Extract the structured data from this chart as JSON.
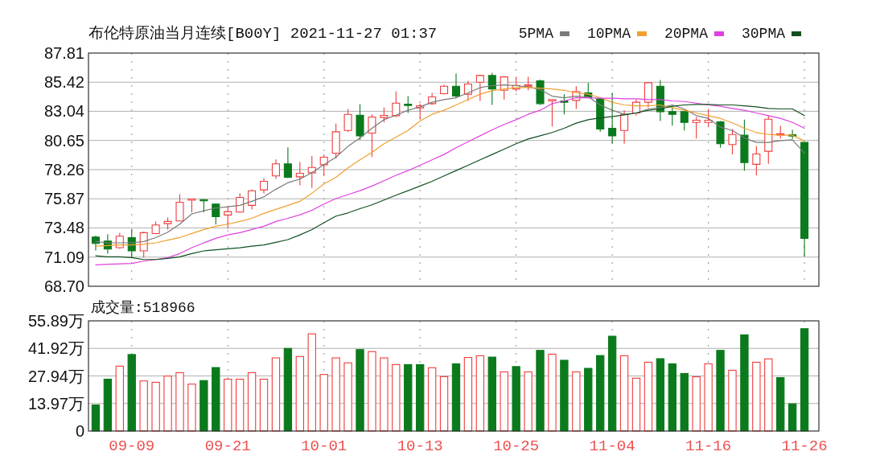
{
  "chart_data": [
    {
      "type": "candlestick",
      "title": "布伦特原油当月连续[B00Y] 2021-11-27 01:37",
      "categories": [
        null,
        null,
        null,
        null,
        null,
        null,
        null,
        null,
        null,
        null,
        null,
        null,
        null,
        null,
        null,
        null,
        null,
        null,
        null,
        null,
        null,
        null,
        null,
        null,
        null,
        null,
        null,
        null,
        null,
        null,
        null,
        null,
        null,
        null,
        null,
        null,
        null,
        null,
        null,
        null,
        null,
        null,
        null,
        null,
        null,
        null,
        null,
        null,
        null,
        null,
        null,
        null,
        null,
        null,
        null,
        null,
        null,
        null,
        null,
        null
      ],
      "ohlc": [
        [
          72.74,
          72.85,
          71.64,
          72.21
        ],
        [
          72.41,
          72.96,
          71.37,
          71.75
        ],
        [
          71.86,
          73.09,
          71.77,
          72.8
        ],
        [
          72.69,
          73.39,
          71.05,
          71.6
        ],
        [
          71.6,
          73.18,
          71.05,
          73.09
        ],
        [
          73.02,
          74.01,
          72.96,
          73.72
        ],
        [
          73.83,
          74.34,
          73.35,
          74.01
        ],
        [
          74.05,
          76.25,
          74.01,
          75.59
        ],
        [
          75.78,
          75.85,
          74.75,
          75.82
        ],
        [
          75.78,
          75.8,
          74.77,
          75.72
        ],
        [
          75.44,
          75.48,
          73.75,
          74.4
        ],
        [
          74.54,
          75.22,
          73.42,
          74.82
        ],
        [
          74.78,
          76.31,
          74.71,
          75.98
        ],
        [
          75.33,
          76.64,
          75.0,
          76.53
        ],
        [
          76.6,
          77.56,
          76.31,
          77.3
        ],
        [
          77.74,
          79.1,
          77.52,
          78.73
        ],
        [
          78.73,
          80.09,
          77.56,
          77.63
        ],
        [
          77.67,
          78.88,
          76.97,
          77.96
        ],
        [
          78.0,
          79.38,
          76.75,
          78.44
        ],
        [
          78.66,
          79.5,
          77.74,
          79.28
        ],
        [
          79.61,
          82.02,
          79.17,
          81.36
        ],
        [
          81.47,
          83.23,
          81.36,
          82.79
        ],
        [
          82.72,
          83.62,
          80.7,
          81.03
        ],
        [
          81.25,
          82.79,
          79.3,
          82.57
        ],
        [
          82.53,
          83.34,
          82.13,
          82.7
        ],
        [
          82.68,
          84.66,
          82.57,
          83.71
        ],
        [
          83.6,
          84.28,
          82.9,
          83.54
        ],
        [
          83.32,
          83.67,
          82.35,
          83.49
        ],
        [
          83.67,
          84.55,
          83.56,
          84.22
        ],
        [
          84.48,
          85.2,
          84.44,
          85.09
        ],
        [
          85.09,
          86.13,
          84.11,
          84.28
        ],
        [
          84.44,
          85.53,
          83.89,
          85.27
        ],
        [
          85.42,
          86.04,
          83.89,
          85.97
        ],
        [
          85.97,
          86.19,
          83.56,
          84.87
        ],
        [
          84.76,
          85.91,
          84.0,
          85.86
        ],
        [
          84.87,
          85.86,
          84.66,
          85.16
        ],
        [
          85.12,
          85.86,
          84.77,
          85.18
        ],
        [
          85.53,
          85.64,
          83.56,
          83.67
        ],
        [
          83.89,
          84.06,
          81.8,
          84.0
        ],
        [
          83.89,
          84.44,
          82.79,
          83.78
        ],
        [
          83.93,
          85.09,
          83.23,
          84.66
        ],
        [
          84.55,
          85.38,
          84.11,
          84.15
        ],
        [
          84.06,
          84.15,
          81.36,
          81.58
        ],
        [
          81.65,
          84.55,
          80.38,
          81.03
        ],
        [
          81.47,
          83.12,
          80.38,
          82.79
        ],
        [
          82.9,
          84.0,
          82.68,
          83.78
        ],
        [
          83.78,
          85.42,
          83.34,
          85.38
        ],
        [
          85.09,
          85.6,
          82.24,
          83.01
        ],
        [
          83.01,
          83.45,
          81.87,
          82.79
        ],
        [
          83.01,
          83.05,
          81.47,
          82.13
        ],
        [
          82.13,
          82.57,
          80.81,
          82.31
        ],
        [
          82.13,
          83.23,
          81.74,
          82.31
        ],
        [
          82.18,
          82.24,
          80.05,
          80.38
        ],
        [
          80.31,
          81.58,
          79.5,
          81.14
        ],
        [
          81.08,
          82.35,
          78.18,
          78.84
        ],
        [
          78.69,
          80.2,
          77.79,
          79.54
        ],
        [
          79.76,
          82.68,
          78.73,
          82.39
        ],
        [
          81.1,
          81.87,
          80.81,
          81.19
        ],
        [
          81.1,
          81.52,
          80.77,
          81.03
        ],
        [
          80.49,
          80.49,
          71.12,
          72.63
        ]
      ],
      "colors": [
        "#0b7a1d",
        "#0b7a1d",
        "#f03c3c",
        "#0b7a1d",
        "#f03c3c",
        "#f03c3c",
        "#f03c3c",
        "#f03c3c",
        "#f03c3c",
        "#0b7a1d",
        "#0b7a1d",
        "#f03c3c",
        "#f03c3c",
        "#f03c3c",
        "#f03c3c",
        "#f03c3c",
        "#0b7a1d",
        "#f03c3c",
        "#f03c3c",
        "#f03c3c",
        "#f03c3c",
        "#f03c3c",
        "#0b7a1d",
        "#f03c3c",
        "#f03c3c",
        "#f03c3c",
        "#0b7a1d",
        "#f03c3c",
        "#f03c3c",
        "#f03c3c",
        "#0b7a1d",
        "#f03c3c",
        "#f03c3c",
        "#0b7a1d",
        "#f03c3c",
        "#f03c3c",
        "#f03c3c",
        "#0b7a1d",
        "#f03c3c",
        "#0b7a1d",
        "#f03c3c",
        "#0b7a1d",
        "#0b7a1d",
        "#0b7a1d",
        "#f03c3c",
        "#f03c3c",
        "#f03c3c",
        "#0b7a1d",
        "#0b7a1d",
        "#0b7a1d",
        "#f03c3c",
        "#f03c3c",
        "#0b7a1d",
        "#f03c3c",
        "#0b7a1d",
        "#f03c3c",
        "#f03c3c",
        "#f03c3c",
        "#0b7a1d",
        "#0b7a1d"
      ],
      "series": [
        {
          "name": "5PMA",
          "type": "line",
          "color": "#7a7a7a",
          "values": [
            72.37,
            72.26,
            72.26,
            72.26,
            72.37,
            72.69,
            73.13,
            73.79,
            74.63,
            74.89,
            75.11,
            75.22,
            75.33,
            75.66,
            76.03,
            76.65,
            77.19,
            77.48,
            78.01,
            78.66,
            79.28,
            80.16,
            80.86,
            81.65,
            82.35,
            82.72,
            83.12,
            83.4,
            83.78,
            84.0,
            84.15,
            84.55,
            84.98,
            85.14,
            85.2,
            85.14,
            85.03,
            84.81,
            84.28,
            84.15,
            84.28,
            84.22,
            83.56,
            83.12,
            82.79,
            82.9,
            83.23,
            83.34,
            83.56,
            83.23,
            82.68,
            82.46,
            81.74,
            81.47,
            80.86,
            80.49,
            80.49,
            80.64,
            80.7,
            79.61
          ]
        },
        {
          "name": "10PMA",
          "type": "line",
          "color": "#f0a030",
          "values": [
            71.99,
            72.04,
            72.08,
            72.08,
            72.15,
            72.26,
            72.48,
            72.69,
            73.02,
            73.35,
            73.62,
            73.79,
            74.01,
            74.27,
            74.67,
            75.0,
            75.33,
            75.66,
            76.32,
            77.08,
            77.63,
            78.4,
            79.06,
            79.67,
            80.38,
            80.92,
            81.47,
            82.24,
            82.79,
            83.12,
            83.56,
            84.0,
            84.44,
            84.72,
            84.87,
            84.98,
            84.98,
            84.94,
            84.87,
            84.76,
            84.55,
            84.44,
            84.15,
            83.78,
            83.56,
            83.49,
            83.49,
            83.56,
            83.34,
            83.12,
            82.9,
            82.68,
            82.46,
            82.09,
            81.65,
            81.3,
            81.14,
            81.08,
            81.08,
            80.6
          ]
        },
        {
          "name": "20PMA",
          "type": "line",
          "color": "#e040e0",
          "values": [
            70.46,
            70.5,
            70.54,
            70.57,
            70.76,
            70.89,
            71.05,
            71.38,
            71.86,
            72.26,
            72.63,
            72.91,
            73.09,
            73.35,
            73.62,
            74.01,
            74.27,
            74.56,
            74.93,
            75.44,
            75.88,
            76.21,
            76.53,
            76.91,
            77.35,
            77.79,
            78.18,
            78.62,
            79.06,
            79.5,
            80.05,
            80.55,
            81.03,
            81.52,
            81.96,
            82.35,
            82.79,
            83.12,
            83.67,
            83.89,
            84.15,
            84.15,
            84.11,
            84.11,
            84.06,
            84.06,
            84.0,
            84.0,
            83.89,
            83.84,
            83.71,
            83.56,
            83.45,
            83.27,
            83.12,
            82.9,
            82.68,
            82.46,
            82.13,
            81.65
          ]
        },
        {
          "name": "30PMA",
          "type": "line",
          "color": "#10501e",
          "values": [
            71.2,
            71.11,
            71.11,
            71.05,
            70.89,
            70.89,
            70.98,
            71.11,
            71.38,
            71.6,
            71.69,
            71.77,
            71.86,
            71.99,
            72.08,
            72.3,
            72.52,
            72.91,
            73.35,
            73.9,
            74.45,
            74.71,
            75.06,
            75.37,
            75.77,
            76.16,
            76.53,
            76.91,
            77.3,
            77.74,
            78.18,
            78.62,
            79.06,
            79.5,
            79.94,
            80.38,
            80.77,
            81.03,
            81.3,
            81.65,
            82.07,
            82.35,
            82.5,
            82.61,
            82.75,
            82.9,
            83.12,
            83.23,
            83.45,
            83.56,
            83.6,
            83.6,
            83.56,
            83.56,
            83.49,
            83.4,
            83.27,
            83.23,
            83.23,
            82.68
          ]
        }
      ],
      "ylim": [
        68.7,
        87.81
      ],
      "yticks": [
        {
          "value": 68.7,
          "label": "68.70"
        },
        71.09,
        73.48,
        75.87,
        78.26,
        80.65,
        83.04,
        85.42,
        87.81
      ],
      "tick_labels": "y",
      "grid": true,
      "legend": "top right"
    },
    {
      "type": "bar",
      "title": "成交量:518966",
      "categories": [
        null,
        null,
        null,
        "09-09",
        null,
        null,
        null,
        null,
        null,
        null,
        null,
        "09-21",
        null,
        null,
        null,
        null,
        null,
        null,
        null,
        "10-01",
        null,
        null,
        null,
        null,
        null,
        null,
        null,
        "10-13",
        null,
        null,
        null,
        null,
        null,
        null,
        null,
        "10-25",
        null,
        null,
        null,
        null,
        null,
        null,
        null,
        "11-04",
        null,
        null,
        null,
        null,
        null,
        null,
        null,
        "11-16",
        null,
        null,
        null,
        null,
        null,
        null,
        null,
        "11-26"
      ],
      "values": [
        13.2,
        26.3,
        32.9,
        38.8,
        25.4,
        24.7,
        27.9,
        29.6,
        23.8,
        25.6,
        32.2,
        26.3,
        26.3,
        29.6,
        26.3,
        37.1,
        41.9,
        37.8,
        49.3,
        28.7,
        37.1,
        34.6,
        41.3,
        40.3,
        37.1,
        33.7,
        33.7,
        33.7,
        32.1,
        27.6,
        34.1,
        37.3,
        38.2,
        37.5,
        30.0,
        32.7,
        30.0,
        40.9,
        39.0,
        35.9,
        30.0,
        31.8,
        38.3,
        48.1,
        38.2,
        26.8,
        34.9,
        36.7,
        34.1,
        29.2,
        27.5,
        34.1,
        40.9,
        30.8,
        48.8,
        34.9,
        36.6,
        27.1,
        13.8,
        51.9
      ],
      "colors": [
        "#0b7a1d",
        "#0b7a1d",
        "#f03c3c",
        "#0b7a1d",
        "#f03c3c",
        "#f03c3c",
        "#f03c3c",
        "#f03c3c",
        "#f03c3c",
        "#0b7a1d",
        "#0b7a1d",
        "#f03c3c",
        "#f03c3c",
        "#f03c3c",
        "#f03c3c",
        "#f03c3c",
        "#0b7a1d",
        "#f03c3c",
        "#f03c3c",
        "#f03c3c",
        "#f03c3c",
        "#f03c3c",
        "#0b7a1d",
        "#f03c3c",
        "#f03c3c",
        "#f03c3c",
        "#0b7a1d",
        "#0b7a1d",
        "#f03c3c",
        "#f03c3c",
        "#0b7a1d",
        "#f03c3c",
        "#f03c3c",
        "#0b7a1d",
        "#f03c3c",
        "#0b7a1d",
        "#f03c3c",
        "#0b7a1d",
        "#f03c3c",
        "#0b7a1d",
        "#f03c3c",
        "#0b7a1d",
        "#0b7a1d",
        "#0b7a1d",
        "#f03c3c",
        "#f03c3c",
        "#f03c3c",
        "#0b7a1d",
        "#0b7a1d",
        "#0b7a1d",
        "#f03c3c",
        "#f03c3c",
        "#0b7a1d",
        "#f03c3c",
        "#0b7a1d",
        "#f03c3c",
        "#f03c3c",
        "#0b7a1d",
        "#0b7a1d",
        "#0b7a1d"
      ],
      "ylim": [
        0,
        55.89
      ],
      "yticks": [
        0,
        {
          "value": 13.97,
          "label": "13.97万"
        },
        {
          "value": 27.94,
          "label": "27.94万"
        },
        {
          "value": 41.92,
          "label": "41.92万"
        },
        {
          "value": 55.89,
          "label": "55.89万"
        }
      ],
      "grid": true
    }
  ]
}
